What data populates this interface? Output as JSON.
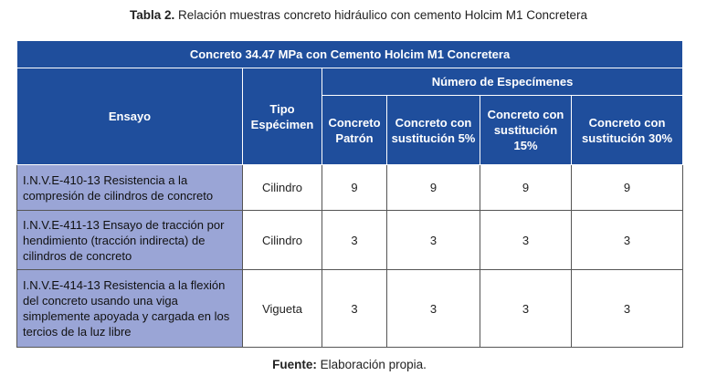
{
  "caption": {
    "label": "Tabla 2.",
    "text": "Relación muestras concreto hidráulico con cemento Holcim M1 Concretera"
  },
  "table": {
    "title": "Concreto 34.47 MPa con Cemento Holcim M1 Concretera",
    "headers": {
      "ensayo": "Ensayo",
      "tipo": "Tipo Espécimen",
      "group": "Número de Especímenes",
      "columns": [
        "Concreto Patrón",
        "Concreto con sustitución 5%",
        "Concreto con sustitución 15%",
        "Concreto con sustitución 30%"
      ]
    },
    "rows": [
      [
        "I.N.V.E-410-13 Resistencia a la compresión de cilindros de concreto",
        "Cilindro",
        9,
        9,
        9,
        9
      ],
      [
        "I.N.V.E-411-13 Ensayo de tracción por hendimiento (tracción indirecta) de cilindros de concreto",
        "Cilindro",
        3,
        3,
        3,
        3
      ],
      [
        "I.N.V.E-414-13 Resistencia a la flexión del concreto usando una viga simplemente apoyada y cargada en los tercios de la luz libre",
        "Vigueta",
        3,
        3,
        3,
        3
      ]
    ]
  },
  "source": {
    "label": "Fuente:",
    "text": "Elaboración propia."
  }
}
